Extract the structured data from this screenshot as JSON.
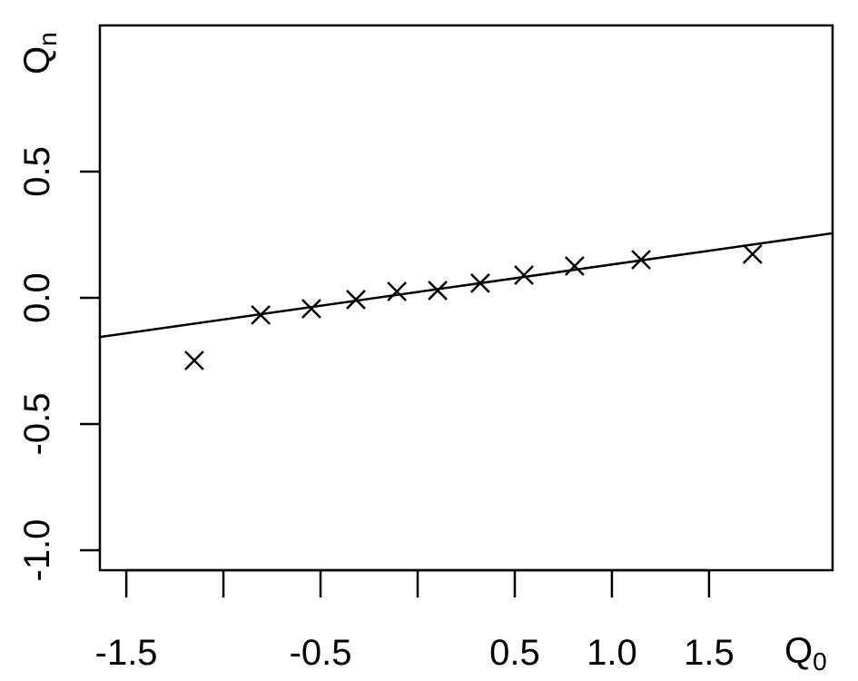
{
  "chart_data": {
    "type": "scatter",
    "xlabel": "Q",
    "xlabel_sub": "0",
    "ylabel": "Q",
    "ylabel_sub": "n",
    "x": [
      -1.15,
      -0.808,
      -0.547,
      -0.318,
      -0.107,
      0.103,
      0.322,
      0.547,
      0.808,
      1.15,
      1.724
    ],
    "values": [
      -0.248,
      -0.068,
      -0.043,
      -0.007,
      0.025,
      0.029,
      0.058,
      0.09,
      0.126,
      0.151,
      0.173
    ],
    "line": {
      "intercept": 0.023,
      "slope": 0.109
    },
    "color": "#000000",
    "xlim": [
      -1.636,
      2.136
    ],
    "ylim": [
      -1.079,
      1.079
    ],
    "xticks": [
      -1.5,
      {
        "value": -1.0,
        "label": null
      },
      -0.5,
      {
        "value": 0,
        "label": null
      },
      0.5,
      {
        "value": 1.0,
        "label": "1.0"
      },
      1.5
    ],
    "yticks": [
      {
        "value": -1.0,
        "label": "-1.0"
      },
      -0.5,
      {
        "value": 0,
        "label": "0.0"
      },
      0.5
    ]
  }
}
